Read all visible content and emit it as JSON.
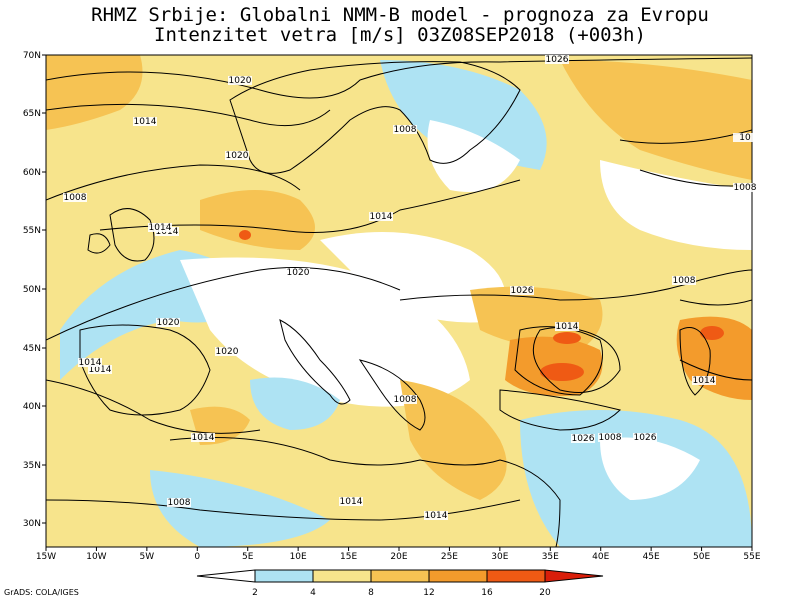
{
  "title_line1": "RHMZ Srbije: Globalni NMM-B model - prognoza za Evropu",
  "title_line2": "Intenzitet vetra [m/s] 03Z08SEP2018 (+003h)",
  "lat_labels": [
    "70N",
    "65N",
    "60N",
    "55N",
    "50N",
    "45N",
    "40N",
    "35N",
    "30N"
  ],
  "lon_labels": [
    "15W",
    "10W",
    "5W",
    "0",
    "5E",
    "10E",
    "15E",
    "20E",
    "25E",
    "30E",
    "35E",
    "40E",
    "45E",
    "50E",
    "55E"
  ],
  "colorbar": {
    "labels": [
      "2",
      "4",
      "8",
      "12",
      "16",
      "20"
    ],
    "colors": [
      "#ffffff",
      "#aee3f3",
      "#f7e48c",
      "#f6c353",
      "#f39b2c",
      "#ef5a14",
      "#d91e0a"
    ]
  },
  "isobar_labels": [
    "1026",
    "1020",
    "1014",
    "1008",
    "1020",
    "1008",
    "1014",
    "1020",
    "1014",
    "1020",
    "1020",
    "1014",
    "1014",
    "1026",
    "1008",
    "1008",
    "1014",
    "1014",
    "1008",
    "1014",
    "1014",
    "1026",
    "1008",
    "1014",
    "1014",
    "10",
    "1026",
    "1008"
  ],
  "credit": "GrADS: COLA/IGES",
  "colors": {
    "land_outline": "#000000",
    "isobar": "#000000",
    "calm": "#ffffff",
    "light": "#aee3f3",
    "moderate": "#f7e48c",
    "fresh": "#f6c353",
    "strong": "#f39b2c",
    "gale": "#ef5a14"
  }
}
